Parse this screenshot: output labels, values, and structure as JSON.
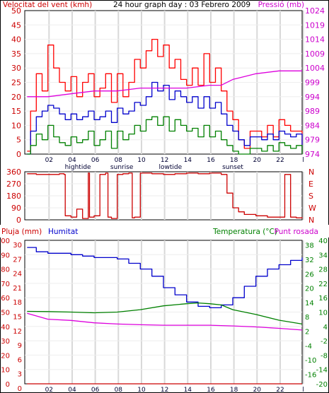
{
  "chart_data": [
    {
      "type": "line",
      "title": "24 hour graph day : 03 Febrero 2009",
      "ylabel": "Velocitat del vent (kmh)",
      "y2label": "Pressió (mb)",
      "ylim": [
        0,
        50
      ],
      "y2lim": [
        974,
        1024
      ],
      "yticks": [
        "0",
        "5",
        "10",
        "15",
        "20",
        "25",
        "30",
        "35",
        "40",
        "45",
        "50"
      ],
      "y2ticks": [
        "974",
        "979",
        "984",
        "989",
        "994",
        "999",
        "1004",
        "1009",
        "1014",
        "1019",
        "1024"
      ],
      "xticks": [
        "02",
        "04",
        "06",
        "08",
        "10",
        "12",
        "14",
        "16",
        "18",
        "20",
        "22",
        "l"
      ],
      "annotations": [
        "hightide",
        "sunrise",
        "lowtide",
        "sunset"
      ],
      "grid": true,
      "colors": {
        "gust": "#ff0000",
        "avg": "#0000cc",
        "min": "#008000",
        "pressure": "#dd00dd",
        "axis_left": "#cc0000",
        "axis_right": "#cc00cc"
      },
      "series": [
        {
          "color": "#ff0000",
          "x": [
            0.2,
            0.5,
            1,
            1.5,
            2,
            2.5,
            3,
            3.5,
            4,
            4.5,
            5,
            5.5,
            6,
            6.5,
            7,
            7.5,
            8,
            8.5,
            9,
            9.5,
            10,
            10.5,
            11,
            11.5,
            12,
            12.5,
            13,
            13.5,
            14,
            14.5,
            15,
            15.5,
            16,
            16.5,
            17,
            17.5,
            18,
            18.5,
            19,
            19.5,
            20,
            20.5,
            21,
            21.5,
            22,
            22.5,
            23,
            23.5,
            24
          ],
          "values": [
            1,
            15,
            28,
            22,
            38,
            30,
            25,
            22,
            27,
            20,
            25,
            28,
            20,
            23,
            28,
            18,
            28,
            20,
            25,
            33,
            30,
            36,
            40,
            34,
            38,
            30,
            33,
            26,
            24,
            30,
            24,
            35,
            25,
            30,
            22,
            15,
            12,
            5,
            2,
            8,
            8,
            6,
            10,
            6,
            12,
            10,
            8,
            8,
            0
          ]
        },
        {
          "color": "#0000cc",
          "x": [
            0.2,
            0.5,
            1,
            1.5,
            2,
            2.5,
            3,
            3.5,
            4,
            4.5,
            5,
            5.5,
            6,
            6.5,
            7,
            7.5,
            8,
            8.5,
            9,
            9.5,
            10,
            10.5,
            11,
            11.5,
            12,
            12.5,
            13,
            13.5,
            14,
            14.5,
            15,
            15.5,
            16,
            16.5,
            17,
            17.5,
            18,
            18.5,
            19,
            19.5,
            20,
            20.5,
            21,
            21.5,
            22,
            22.5,
            23,
            23.5,
            24
          ],
          "values": [
            0,
            8,
            13,
            15,
            17,
            16,
            14,
            12,
            14,
            12,
            13,
            15,
            12,
            13,
            15,
            11,
            16,
            14,
            15,
            18,
            17,
            20,
            25,
            22,
            24,
            19,
            22,
            20,
            18,
            20,
            16,
            20,
            16,
            18,
            14,
            10,
            8,
            5,
            3,
            6,
            6,
            5,
            7,
            5,
            8,
            7,
            6,
            7,
            0
          ]
        },
        {
          "color": "#008000",
          "x": [
            0.2,
            0.5,
            1,
            1.5,
            2,
            2.5,
            3,
            3.5,
            4,
            4.5,
            5,
            5.5,
            6,
            6.5,
            7,
            7.5,
            8,
            8.5,
            9,
            9.5,
            10,
            10.5,
            11,
            11.5,
            12,
            12.5,
            13,
            13.5,
            14,
            14.5,
            15,
            15.5,
            16,
            16.5,
            17,
            17.5,
            18,
            18.5,
            19,
            19.5,
            20,
            20.5,
            21,
            21.5,
            22,
            22.5,
            23,
            23.5,
            24
          ],
          "values": [
            0,
            3,
            7,
            5,
            10,
            6,
            4,
            3,
            6,
            4,
            5,
            8,
            3,
            5,
            8,
            2,
            8,
            5,
            7,
            10,
            8,
            12,
            13,
            10,
            13,
            8,
            12,
            10,
            8,
            9,
            6,
            10,
            6,
            8,
            5,
            3,
            1,
            0,
            0,
            2,
            2,
            1,
            3,
            1,
            4,
            3,
            2,
            3,
            0
          ]
        },
        {
          "name": "Pressió",
          "axis": "right",
          "color": "#dd00dd",
          "x": [
            0.2,
            2,
            4,
            6,
            8,
            10,
            12,
            14,
            16,
            17,
            18,
            19,
            20,
            22,
            24
          ],
          "values": [
            994,
            994,
            995,
            996,
            996,
            997,
            997,
            997,
            998,
            998,
            1000,
            1001,
            1002,
            1003,
            1003
          ]
        }
      ]
    },
    {
      "type": "line",
      "title": "",
      "ylim": [
        0,
        360
      ],
      "yticks": [
        "0",
        "90",
        "180",
        "270",
        "360"
      ],
      "y2ticks": [
        "N",
        "W",
        "S",
        "E",
        "N"
      ],
      "xticks": [],
      "grid": true,
      "series": [
        {
          "color": "#cc0000",
          "x": [
            0.2,
            1,
            2,
            3,
            3.4,
            3.5,
            4,
            4.5,
            5,
            5.5,
            5.6,
            6,
            6.5,
            7,
            7.2,
            7.5,
            8,
            8.5,
            9,
            9.3,
            9.5,
            10,
            11,
            12,
            13,
            14,
            15,
            16,
            16.5,
            17,
            17.5,
            18,
            18.5,
            19,
            20,
            21,
            22,
            22.5,
            23,
            23.5,
            24
          ],
          "values": [
            345,
            340,
            340,
            345,
            340,
            30,
            20,
            80,
            10,
            350,
            20,
            30,
            340,
            350,
            20,
            10,
            340,
            345,
            350,
            15,
            20,
            350,
            345,
            340,
            345,
            350,
            345,
            350,
            350,
            340,
            200,
            90,
            60,
            40,
            30,
            20,
            20,
            340,
            20,
            15,
            20
          ]
        }
      ]
    },
    {
      "type": "line",
      "title": "",
      "ylabel": "Pluja (mm)",
      "ylabel2": "Humitat",
      "y2label": "Temperatura (°C)",
      "y2label2": "Punt rosada",
      "ylim": [
        0,
        100
      ],
      "y2lim": [
        -20,
        40
      ],
      "yticks": [
        "0",
        "10",
        "20",
        "30",
        "40",
        "50",
        "60",
        "70",
        "80",
        "90",
        "100"
      ],
      "yticks_inner": [
        "0",
        "3",
        "6",
        "9",
        "12",
        "15",
        "18",
        "21",
        "24",
        "27",
        "30"
      ],
      "y2ticks": [
        "-20",
        "-14",
        "-8",
        "-2",
        "4",
        "10",
        "16",
        "22",
        "28",
        "34",
        "40"
      ],
      "y2ticks_inner": [
        "-16",
        "-10",
        "-4",
        "2",
        "8",
        "14",
        "20",
        "26",
        "32",
        "38"
      ],
      "xticks": [
        "02",
        "04",
        "06",
        "08",
        "10",
        "12",
        "14",
        "16",
        "18",
        "20",
        "22",
        "l"
      ],
      "annotations": [
        "hightide",
        "sunrise",
        "lowtide",
        "sunset"
      ],
      "grid": true,
      "series": [
        {
          "name": "Humitat",
          "color": "#0000cc",
          "x": [
            0.2,
            1,
            2,
            3,
            4,
            5,
            6,
            7,
            8,
            9,
            10,
            11,
            12,
            13,
            14,
            15,
            16,
            17,
            18,
            19,
            20,
            21,
            22,
            23,
            24
          ],
          "values": [
            95,
            92,
            91,
            91,
            90,
            89,
            88,
            88,
            87,
            84,
            80,
            75,
            67,
            62,
            57,
            54,
            53,
            55,
            60,
            68,
            75,
            80,
            83,
            86,
            88
          ]
        },
        {
          "name": "Temperatura (°C)",
          "axis": "right",
          "color": "#008000",
          "x": [
            0.2,
            2,
            4,
            6,
            8,
            10,
            12,
            14,
            15,
            16,
            17,
            18,
            20,
            22,
            24
          ],
          "values": [
            10.3,
            10.2,
            10,
            9.7,
            10,
            11,
            12.6,
            13.5,
            13.8,
            13.5,
            13,
            11,
            9,
            6.6,
            5
          ]
        },
        {
          "name": "Punt rosada",
          "axis": "right",
          "color": "#dd00dd",
          "x": [
            0.2,
            2,
            4,
            6,
            8,
            10,
            12,
            14,
            16,
            18,
            20,
            22,
            24
          ],
          "values": [
            9.5,
            7,
            6.5,
            5.5,
            5,
            4.7,
            4.5,
            4.5,
            4.5,
            4.2,
            3.8,
            3.2,
            2.5
          ]
        },
        {
          "name": "Pluja (mm)",
          "color": "#cc0000",
          "x": [
            0.2,
            24
          ],
          "values": [
            0,
            0
          ]
        }
      ]
    }
  ]
}
